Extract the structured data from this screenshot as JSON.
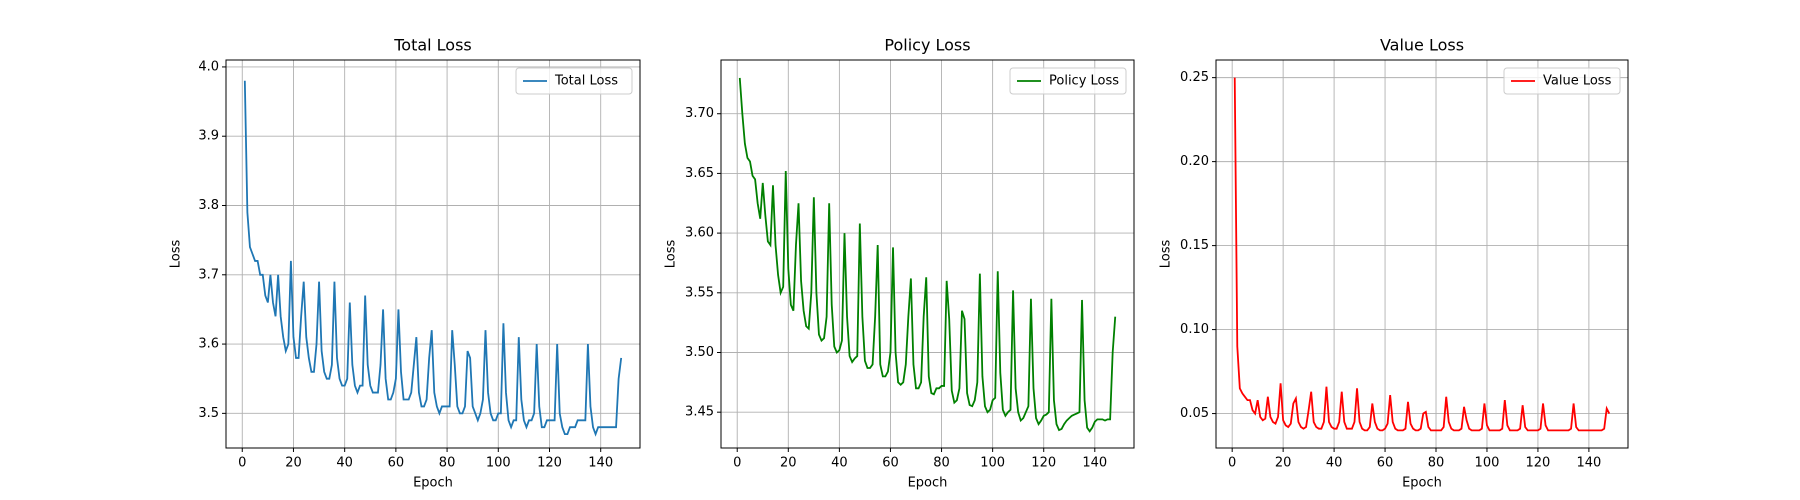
{
  "chart_data": [
    {
      "type": "line",
      "title": "Total Loss",
      "xlabel": "Epoch",
      "ylabel": "Loss",
      "grid": true,
      "legend": "upper right",
      "xlim": [
        -6.35,
        155.35
      ],
      "xticks": [
        0,
        20,
        40,
        60,
        80,
        100,
        120,
        140
      ],
      "ylim": [
        3.45,
        4.01
      ],
      "yticks": [
        3.5,
        3.6,
        3.7,
        3.8,
        3.9,
        {
          "value": 4,
          "label": "4.0"
        }
      ],
      "x": [
        1,
        2,
        3,
        4,
        5,
        6,
        7,
        8,
        9,
        10,
        11,
        12,
        13,
        14,
        15,
        16,
        17,
        18,
        19,
        20,
        21,
        22,
        23,
        24,
        25,
        26,
        27,
        28,
        29,
        30,
        31,
        32,
        33,
        34,
        35,
        36,
        37,
        38,
        39,
        40,
        41,
        42,
        43,
        44,
        45,
        46,
        47,
        48,
        49,
        50,
        51,
        52,
        53,
        54,
        55,
        56,
        57,
        58,
        59,
        60,
        61,
        62,
        63,
        64,
        65,
        66,
        67,
        68,
        69,
        70,
        71,
        72,
        73,
        74,
        75,
        76,
        77,
        78,
        79,
        80,
        81,
        82,
        83,
        84,
        85,
        86,
        87,
        88,
        89,
        90,
        91,
        92,
        93,
        94,
        95,
        96,
        97,
        98,
        99,
        100,
        101,
        102,
        103,
        104,
        105,
        106,
        107,
        108,
        109,
        110,
        111,
        112,
        113,
        114,
        115,
        116,
        117,
        118,
        119,
        120,
        121,
        122,
        123,
        124,
        125,
        126,
        127,
        128,
        129,
        130,
        131,
        132,
        133,
        134,
        135,
        136,
        137,
        138,
        139,
        140,
        141,
        142,
        143,
        144,
        145,
        146,
        147,
        148
      ],
      "series": [
        {
          "name": "Total Loss",
          "color": "#1f77b4",
          "values": [
            3.98,
            3.79,
            3.74,
            3.73,
            3.72,
            3.72,
            3.7,
            3.7,
            3.67,
            3.66,
            3.7,
            3.66,
            3.64,
            3.7,
            3.64,
            3.61,
            3.59,
            3.6,
            3.72,
            3.61,
            3.58,
            3.58,
            3.64,
            3.69,
            3.61,
            3.58,
            3.56,
            3.56,
            3.6,
            3.69,
            3.59,
            3.56,
            3.55,
            3.55,
            3.57,
            3.69,
            3.58,
            3.55,
            3.54,
            3.54,
            3.55,
            3.66,
            3.57,
            3.54,
            3.53,
            3.54,
            3.54,
            3.67,
            3.57,
            3.54,
            3.53,
            3.53,
            3.53,
            3.57,
            3.65,
            3.55,
            3.52,
            3.52,
            3.53,
            3.55,
            3.65,
            3.56,
            3.52,
            3.52,
            3.52,
            3.53,
            3.57,
            3.61,
            3.53,
            3.51,
            3.51,
            3.52,
            3.58,
            3.62,
            3.53,
            3.51,
            3.5,
            3.51,
            3.51,
            3.51,
            3.51,
            3.62,
            3.57,
            3.51,
            3.5,
            3.5,
            3.51,
            3.59,
            3.58,
            3.51,
            3.5,
            3.49,
            3.5,
            3.52,
            3.62,
            3.53,
            3.5,
            3.49,
            3.49,
            3.5,
            3.5,
            3.63,
            3.53,
            3.49,
            3.48,
            3.49,
            3.49,
            3.61,
            3.52,
            3.49,
            3.48,
            3.49,
            3.49,
            3.5,
            3.6,
            3.51,
            3.48,
            3.48,
            3.49,
            3.49,
            3.49,
            3.49,
            3.6,
            3.5,
            3.48,
            3.47,
            3.47,
            3.48,
            3.48,
            3.48,
            3.49,
            3.49,
            3.49,
            3.49,
            3.6,
            3.51,
            3.48,
            3.47,
            3.48,
            3.48,
            3.48,
            3.48,
            3.48,
            3.48,
            3.48,
            3.48,
            3.55,
            3.58
          ]
        }
      ]
    },
    {
      "type": "line",
      "title": "Policy Loss",
      "xlabel": "Epoch",
      "ylabel": "Loss",
      "grid": true,
      "legend": "upper right",
      "xlim": [
        -6.35,
        155.35
      ],
      "xticks": [
        0,
        20,
        40,
        60,
        80,
        100,
        120,
        140
      ],
      "ylim": [
        3.42,
        3.745
      ],
      "yticks": [
        3.45,
        {
          "value": 3.5,
          "label": "3.50"
        },
        3.55,
        {
          "value": 3.6,
          "label": "3.60"
        },
        3.65,
        {
          "value": 3.7,
          "label": "3.70"
        }
      ],
      "x": [
        1,
        2,
        3,
        4,
        5,
        6,
        7,
        8,
        9,
        10,
        11,
        12,
        13,
        14,
        15,
        16,
        17,
        18,
        19,
        20,
        21,
        22,
        23,
        24,
        25,
        26,
        27,
        28,
        29,
        30,
        31,
        32,
        33,
        34,
        35,
        36,
        37,
        38,
        39,
        40,
        41,
        42,
        43,
        44,
        45,
        46,
        47,
        48,
        49,
        50,
        51,
        52,
        53,
        54,
        55,
        56,
        57,
        58,
        59,
        60,
        61,
        62,
        63,
        64,
        65,
        66,
        67,
        68,
        69,
        70,
        71,
        72,
        73,
        74,
        75,
        76,
        77,
        78,
        79,
        80,
        81,
        82,
        83,
        84,
        85,
        86,
        87,
        88,
        89,
        90,
        91,
        92,
        93,
        94,
        95,
        96,
        97,
        98,
        99,
        100,
        101,
        102,
        103,
        104,
        105,
        106,
        107,
        108,
        109,
        110,
        111,
        112,
        113,
        114,
        115,
        116,
        117,
        118,
        119,
        120,
        121,
        122,
        123,
        124,
        125,
        126,
        127,
        128,
        129,
        130,
        131,
        132,
        133,
        134,
        135,
        136,
        137,
        138,
        139,
        140,
        141,
        142,
        143,
        144,
        145,
        146,
        147,
        148
      ],
      "series": [
        {
          "name": "Policy Loss",
          "color": "#008000",
          "values": [
            3.73,
            3.7,
            3.675,
            3.663,
            3.66,
            3.648,
            3.645,
            3.625,
            3.612,
            3.642,
            3.615,
            3.593,
            3.59,
            3.64,
            3.59,
            3.565,
            3.55,
            3.555,
            3.652,
            3.57,
            3.54,
            3.535,
            3.59,
            3.625,
            3.56,
            3.535,
            3.522,
            3.52,
            3.55,
            3.63,
            3.55,
            3.515,
            3.51,
            3.512,
            3.53,
            3.625,
            3.54,
            3.505,
            3.5,
            3.502,
            3.51,
            3.6,
            3.53,
            3.497,
            3.492,
            3.495,
            3.497,
            3.608,
            3.53,
            3.493,
            3.487,
            3.487,
            3.49,
            3.53,
            3.59,
            3.49,
            3.48,
            3.48,
            3.484,
            3.5,
            3.588,
            3.5,
            3.475,
            3.473,
            3.475,
            3.49,
            3.53,
            3.562,
            3.49,
            3.47,
            3.47,
            3.475,
            3.53,
            3.563,
            3.48,
            3.466,
            3.465,
            3.47,
            3.47,
            3.472,
            3.472,
            3.56,
            3.528,
            3.468,
            3.458,
            3.46,
            3.47,
            3.535,
            3.528,
            3.466,
            3.456,
            3.455,
            3.46,
            3.475,
            3.566,
            3.48,
            3.455,
            3.45,
            3.452,
            3.46,
            3.462,
            3.568,
            3.483,
            3.452,
            3.447,
            3.45,
            3.452,
            3.552,
            3.47,
            3.45,
            3.443,
            3.445,
            3.45,
            3.455,
            3.545,
            3.47,
            3.445,
            3.44,
            3.443,
            3.447,
            3.448,
            3.45,
            3.545,
            3.46,
            3.44,
            3.435,
            3.436,
            3.44,
            3.443,
            3.445,
            3.447,
            3.448,
            3.449,
            3.45,
            3.544,
            3.46,
            3.437,
            3.434,
            3.437,
            3.442,
            3.444,
            3.444,
            3.444,
            3.443,
            3.444,
            3.444,
            3.5,
            3.53
          ]
        }
      ]
    },
    {
      "type": "line",
      "title": "Value Loss",
      "xlabel": "Epoch",
      "ylabel": "Loss",
      "grid": true,
      "legend": "upper right",
      "xlim": [
        -6.35,
        155.35
      ],
      "xticks": [
        0,
        20,
        40,
        60,
        80,
        100,
        120,
        140
      ],
      "ylim": [
        0.0295,
        0.2605
      ],
      "yticks": [
        0.05,
        {
          "value": 0.1,
          "label": "0.10"
        },
        0.15,
        {
          "value": 0.2,
          "label": "0.20"
        },
        0.25
      ],
      "x": [
        1,
        2,
        3,
        4,
        5,
        6,
        7,
        8,
        9,
        10,
        11,
        12,
        13,
        14,
        15,
        16,
        17,
        18,
        19,
        20,
        21,
        22,
        23,
        24,
        25,
        26,
        27,
        28,
        29,
        30,
        31,
        32,
        33,
        34,
        35,
        36,
        37,
        38,
        39,
        40,
        41,
        42,
        43,
        44,
        45,
        46,
        47,
        48,
        49,
        50,
        51,
        52,
        53,
        54,
        55,
        56,
        57,
        58,
        59,
        60,
        61,
        62,
        63,
        64,
        65,
        66,
        67,
        68,
        69,
        70,
        71,
        72,
        73,
        74,
        75,
        76,
        77,
        78,
        79,
        80,
        81,
        82,
        83,
        84,
        85,
        86,
        87,
        88,
        89,
        90,
        91,
        92,
        93,
        94,
        95,
        96,
        97,
        98,
        99,
        100,
        101,
        102,
        103,
        104,
        105,
        106,
        107,
        108,
        109,
        110,
        111,
        112,
        113,
        114,
        115,
        116,
        117,
        118,
        119,
        120,
        121,
        122,
        123,
        124,
        125,
        126,
        127,
        128,
        129,
        130,
        131,
        132,
        133,
        134,
        135,
        136,
        137,
        138,
        139,
        140,
        141,
        142,
        143,
        144,
        145,
        146,
        147,
        148
      ],
      "series": [
        {
          "name": "Value Loss",
          "color": "#ff0000",
          "values": [
            0.25,
            0.09,
            0.065,
            0.062,
            0.06,
            0.058,
            0.058,
            0.052,
            0.05,
            0.058,
            0.048,
            0.046,
            0.047,
            0.06,
            0.048,
            0.045,
            0.044,
            0.048,
            0.068,
            0.046,
            0.043,
            0.042,
            0.044,
            0.056,
            0.059,
            0.045,
            0.042,
            0.041,
            0.042,
            0.052,
            0.063,
            0.045,
            0.042,
            0.041,
            0.041,
            0.045,
            0.066,
            0.045,
            0.042,
            0.041,
            0.041,
            0.045,
            0.063,
            0.045,
            0.041,
            0.041,
            0.041,
            0.045,
            0.065,
            0.045,
            0.041,
            0.04,
            0.04,
            0.042,
            0.056,
            0.045,
            0.041,
            0.04,
            0.04,
            0.041,
            0.044,
            0.061,
            0.045,
            0.041,
            0.04,
            0.04,
            0.04,
            0.041,
            0.057,
            0.044,
            0.041,
            0.04,
            0.04,
            0.041,
            0.05,
            0.051,
            0.042,
            0.04,
            0.04,
            0.04,
            0.04,
            0.04,
            0.042,
            0.06,
            0.045,
            0.041,
            0.04,
            0.04,
            0.04,
            0.041,
            0.054,
            0.046,
            0.041,
            0.04,
            0.04,
            0.04,
            0.04,
            0.041,
            0.056,
            0.043,
            0.04,
            0.04,
            0.04,
            0.04,
            0.04,
            0.041,
            0.058,
            0.043,
            0.04,
            0.04,
            0.04,
            0.04,
            0.041,
            0.055,
            0.042,
            0.04,
            0.04,
            0.04,
            0.04,
            0.04,
            0.041,
            0.056,
            0.043,
            0.04,
            0.04,
            0.04,
            0.04,
            0.04,
            0.04,
            0.04,
            0.04,
            0.04,
            0.041,
            0.056,
            0.042,
            0.04,
            0.04,
            0.04,
            0.04,
            0.04,
            0.04,
            0.04,
            0.04,
            0.04,
            0.04,
            0.041,
            0.053,
            0.05
          ]
        }
      ]
    }
  ]
}
